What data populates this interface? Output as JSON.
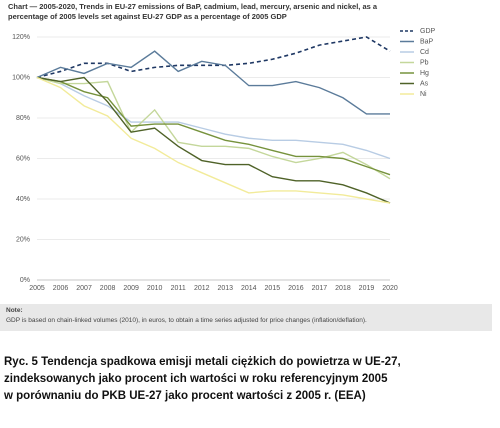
{
  "chart_data": {
    "type": "line",
    "title": "Chart — 2005-2020, Trends in EU-27 emissions of BaP, cadmium, lead, mercury, arsenic and nickel, as a percentage of 2005 levels set against EU-27 GDP as a percentage of 2005 GDP",
    "categories": [
      "2005",
      "2006",
      "2007",
      "2008",
      "2009",
      "2010",
      "2011",
      "2012",
      "2013",
      "2014",
      "2015",
      "2016",
      "2017",
      "2018",
      "2019",
      "2020"
    ],
    "series": [
      {
        "name": "GDP",
        "color": "#1f3864",
        "dashed": true,
        "values": [
          100,
          103,
          107,
          107,
          103,
          105,
          106,
          106,
          106,
          107,
          109,
          112,
          116,
          118,
          120,
          113
        ]
      },
      {
        "name": "BaP",
        "color": "#5b7b9a",
        "values": [
          100,
          105,
          102,
          107,
          105,
          113,
          103,
          108,
          106,
          96,
          96,
          98,
          95,
          90,
          82,
          82
        ]
      },
      {
        "name": "Cd",
        "color": "#b8cce4",
        "values": [
          100,
          97,
          91,
          86,
          78,
          78,
          78,
          75,
          72,
          70,
          69,
          69,
          68,
          67,
          64,
          60
        ]
      },
      {
        "name": "Pb",
        "color": "#c4d79b",
        "values": [
          100,
          97,
          97,
          98,
          73,
          84,
          68,
          66,
          66,
          65,
          61,
          58,
          60,
          63,
          57,
          50
        ]
      },
      {
        "name": "Hg",
        "color": "#76923c",
        "values": [
          100,
          98,
          93,
          90,
          76,
          77,
          77,
          73,
          69,
          67,
          64,
          61,
          61,
          60,
          56,
          52
        ]
      },
      {
        "name": "As",
        "color": "#4f6228",
        "values": [
          100,
          98,
          100,
          88,
          73,
          75,
          66,
          59,
          57,
          57,
          51,
          49,
          49,
          47,
          43,
          38
        ]
      },
      {
        "name": "Ni",
        "color": "#f2eb9a",
        "values": [
          100,
          95,
          86,
          81,
          70,
          65,
          58,
          53,
          48,
          43,
          44,
          44,
          43,
          42,
          40,
          38
        ]
      }
    ],
    "ylim": [
      0,
      120
    ],
    "yticks": [
      {
        "value": 0,
        "label": "0%"
      },
      {
        "value": 20,
        "label": "20%"
      },
      {
        "value": 40,
        "label": "40%"
      },
      {
        "value": 60,
        "label": "60%"
      },
      {
        "value": 80,
        "label": "80%"
      },
      {
        "value": 100,
        "label": "100%"
      },
      {
        "value": 120,
        "label": "120%"
      }
    ],
    "grid": true,
    "legend": "right"
  },
  "note": {
    "heading": "Note:",
    "text": "GDP is based on chain-linked volumes (2010), in euros, to obtain a time series adjusted for price changes (inflation/deflation)."
  },
  "caption": [
    "Ryc. 5 Tendencja spadkowa emisji metali ciężkich do powietrza w UE-27,",
    "zindeksowanych jako procent ich wartości w roku referencyjnym 2005",
    "w porównaniu do PKB UE-27 jako procent wartości z 2005 r. (EEA)"
  ]
}
